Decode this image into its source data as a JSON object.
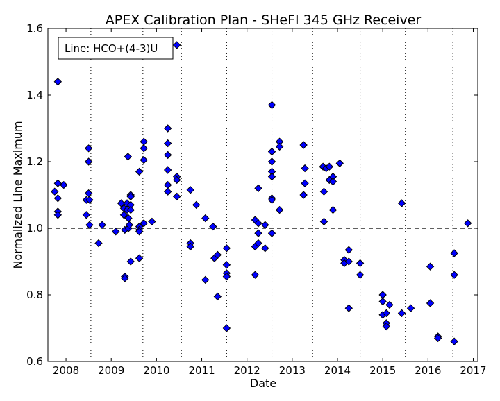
{
  "chart_data": {
    "type": "scatter",
    "title": "APEX Calibration Plan - SHeFI 345 GHz Receiver",
    "xlabel": "Date",
    "ylabel": "Normalized Line Maximum",
    "annotation": "Line: HCO+(4-3)U",
    "xlim": [
      2007.6,
      2017.1
    ],
    "ylim": [
      0.6,
      1.6
    ],
    "x_ticks": [
      2008,
      2009,
      2010,
      2011,
      2012,
      2013,
      2014,
      2015,
      2016,
      2017
    ],
    "y_ticks": [
      0.6,
      0.8,
      1.0,
      1.2,
      1.4,
      1.6
    ],
    "reference_line": 1.0,
    "vertical_markers": [
      2008.55,
      2009.7,
      2010.55,
      2011.55,
      2012.55,
      2013.45,
      2014.5,
      2015.5,
      2016.55
    ],
    "grid": "off",
    "marker_color": "#0000ff",
    "points": [
      {
        "x": 2007.75,
        "y": 1.11
      },
      {
        "x": 2007.82,
        "y": 1.44
      },
      {
        "x": 2007.82,
        "y": 1.135
      },
      {
        "x": 2007.82,
        "y": 1.09
      },
      {
        "x": 2007.82,
        "y": 1.05
      },
      {
        "x": 2007.82,
        "y": 1.04
      },
      {
        "x": 2007.95,
        "y": 1.13
      },
      {
        "x": 2008.45,
        "y": 1.085
      },
      {
        "x": 2008.45,
        "y": 1.04
      },
      {
        "x": 2008.5,
        "y": 1.24
      },
      {
        "x": 2008.5,
        "y": 1.2
      },
      {
        "x": 2008.5,
        "y": 1.105
      },
      {
        "x": 2008.52,
        "y": 1.085
      },
      {
        "x": 2008.52,
        "y": 1.01
      },
      {
        "x": 2008.72,
        "y": 0.955
      },
      {
        "x": 2008.8,
        "y": 1.01
      },
      {
        "x": 2009.1,
        "y": 0.99
      },
      {
        "x": 2009.22,
        "y": 1.075
      },
      {
        "x": 2009.28,
        "y": 1.06
      },
      {
        "x": 2009.28,
        "y": 1.04
      },
      {
        "x": 2009.3,
        "y": 0.995
      },
      {
        "x": 2009.3,
        "y": 0.855
      },
      {
        "x": 2009.3,
        "y": 0.85
      },
      {
        "x": 2009.35,
        "y": 1.075
      },
      {
        "x": 2009.35,
        "y": 1.055
      },
      {
        "x": 2009.37,
        "y": 1.215
      },
      {
        "x": 2009.38,
        "y": 1.03
      },
      {
        "x": 2009.38,
        "y": 1.0
      },
      {
        "x": 2009.4,
        "y": 1.01
      },
      {
        "x": 2009.43,
        "y": 1.1
      },
      {
        "x": 2009.43,
        "y": 1.095
      },
      {
        "x": 2009.43,
        "y": 1.07
      },
      {
        "x": 2009.43,
        "y": 1.055
      },
      {
        "x": 2009.43,
        "y": 0.9
      },
      {
        "x": 2009.62,
        "y": 1.17
      },
      {
        "x": 2009.62,
        "y": 1.005
      },
      {
        "x": 2009.62,
        "y": 0.995
      },
      {
        "x": 2009.62,
        "y": 0.99
      },
      {
        "x": 2009.62,
        "y": 0.91
      },
      {
        "x": 2009.72,
        "y": 1.26
      },
      {
        "x": 2009.72,
        "y": 1.24
      },
      {
        "x": 2009.72,
        "y": 1.205
      },
      {
        "x": 2009.72,
        "y": 1.015
      },
      {
        "x": 2009.9,
        "y": 1.02
      },
      {
        "x": 2010.25,
        "y": 1.3
      },
      {
        "x": 2010.25,
        "y": 1.255
      },
      {
        "x": 2010.25,
        "y": 1.22
      },
      {
        "x": 2010.25,
        "y": 1.175
      },
      {
        "x": 2010.25,
        "y": 1.13
      },
      {
        "x": 2010.25,
        "y": 1.11
      },
      {
        "x": 2010.45,
        "y": 1.55
      },
      {
        "x": 2010.45,
        "y": 1.155
      },
      {
        "x": 2010.45,
        "y": 1.145
      },
      {
        "x": 2010.45,
        "y": 1.095
      },
      {
        "x": 2010.75,
        "y": 1.115
      },
      {
        "x": 2010.75,
        "y": 0.955
      },
      {
        "x": 2010.75,
        "y": 0.945
      },
      {
        "x": 2010.88,
        "y": 1.07
      },
      {
        "x": 2011.08,
        "y": 1.03
      },
      {
        "x": 2011.08,
        "y": 0.845
      },
      {
        "x": 2011.25,
        "y": 1.005
      },
      {
        "x": 2011.28,
        "y": 0.91
      },
      {
        "x": 2011.35,
        "y": 0.92
      },
      {
        "x": 2011.35,
        "y": 0.795
      },
      {
        "x": 2011.55,
        "y": 0.94
      },
      {
        "x": 2011.55,
        "y": 0.89
      },
      {
        "x": 2011.55,
        "y": 0.865
      },
      {
        "x": 2011.55,
        "y": 0.855
      },
      {
        "x": 2011.55,
        "y": 0.7
      },
      {
        "x": 2012.18,
        "y": 1.025
      },
      {
        "x": 2012.18,
        "y": 0.945
      },
      {
        "x": 2012.18,
        "y": 0.86
      },
      {
        "x": 2012.25,
        "y": 1.12
      },
      {
        "x": 2012.25,
        "y": 1.015
      },
      {
        "x": 2012.25,
        "y": 0.985
      },
      {
        "x": 2012.25,
        "y": 0.955
      },
      {
        "x": 2012.4,
        "y": 1.01
      },
      {
        "x": 2012.4,
        "y": 0.94
      },
      {
        "x": 2012.55,
        "y": 1.37
      },
      {
        "x": 2012.55,
        "y": 1.23
      },
      {
        "x": 2012.55,
        "y": 1.2
      },
      {
        "x": 2012.55,
        "y": 1.17
      },
      {
        "x": 2012.55,
        "y": 1.155
      },
      {
        "x": 2012.55,
        "y": 1.09
      },
      {
        "x": 2012.55,
        "y": 1.085
      },
      {
        "x": 2012.55,
        "y": 0.985
      },
      {
        "x": 2012.72,
        "y": 1.26
      },
      {
        "x": 2012.72,
        "y": 1.245
      },
      {
        "x": 2012.72,
        "y": 1.055
      },
      {
        "x": 2013.25,
        "y": 1.25
      },
      {
        "x": 2013.25,
        "y": 1.1
      },
      {
        "x": 2013.28,
        "y": 1.18
      },
      {
        "x": 2013.28,
        "y": 1.135
      },
      {
        "x": 2013.68,
        "y": 1.185
      },
      {
        "x": 2013.7,
        "y": 1.11
      },
      {
        "x": 2013.7,
        "y": 1.02
      },
      {
        "x": 2013.75,
        "y": 1.18
      },
      {
        "x": 2013.82,
        "y": 1.185
      },
      {
        "x": 2013.82,
        "y": 1.145
      },
      {
        "x": 2013.9,
        "y": 1.155
      },
      {
        "x": 2013.9,
        "y": 1.14
      },
      {
        "x": 2013.9,
        "y": 1.055
      },
      {
        "x": 2014.05,
        "y": 1.195
      },
      {
        "x": 2014.15,
        "y": 0.905
      },
      {
        "x": 2014.15,
        "y": 0.895
      },
      {
        "x": 2014.25,
        "y": 0.935
      },
      {
        "x": 2014.25,
        "y": 0.9
      },
      {
        "x": 2014.25,
        "y": 0.76
      },
      {
        "x": 2014.5,
        "y": 0.895
      },
      {
        "x": 2014.5,
        "y": 0.86
      },
      {
        "x": 2015.0,
        "y": 0.8
      },
      {
        "x": 2015.0,
        "y": 0.78
      },
      {
        "x": 2015.0,
        "y": 0.74
      },
      {
        "x": 2015.08,
        "y": 0.745
      },
      {
        "x": 2015.08,
        "y": 0.715
      },
      {
        "x": 2015.08,
        "y": 0.705
      },
      {
        "x": 2015.15,
        "y": 0.77
      },
      {
        "x": 2015.42,
        "y": 1.075
      },
      {
        "x": 2015.42,
        "y": 0.745
      },
      {
        "x": 2015.62,
        "y": 0.76
      },
      {
        "x": 2016.05,
        "y": 0.885
      },
      {
        "x": 2016.05,
        "y": 0.775
      },
      {
        "x": 2016.22,
        "y": 0.675
      },
      {
        "x": 2016.22,
        "y": 0.67
      },
      {
        "x": 2016.58,
        "y": 0.925
      },
      {
        "x": 2016.58,
        "y": 0.86
      },
      {
        "x": 2016.58,
        "y": 0.66
      },
      {
        "x": 2016.88,
        "y": 1.015
      }
    ]
  }
}
